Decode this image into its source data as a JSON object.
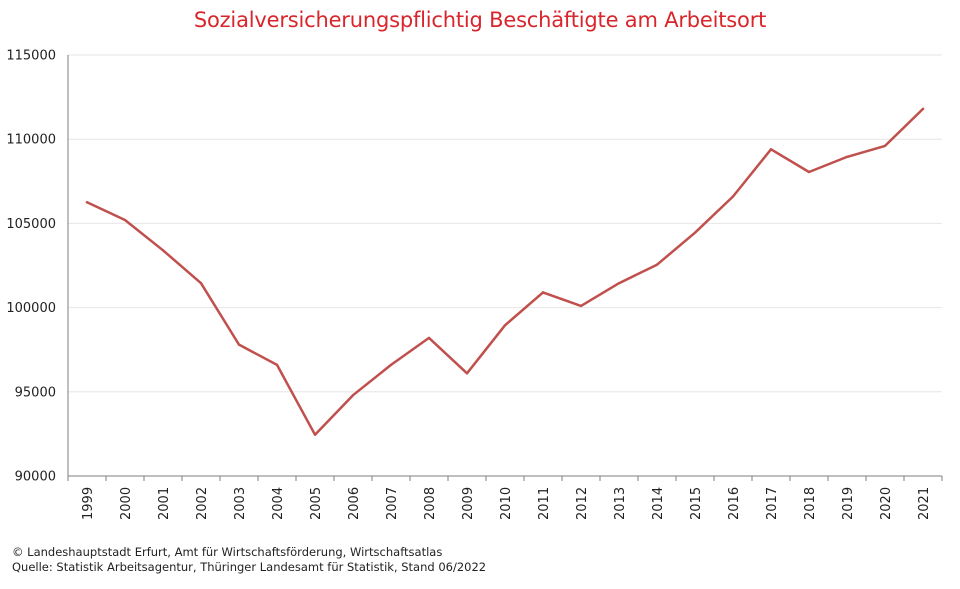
{
  "title": "Sozialversicherungspflichtig Beschäftigte am Arbeitsort",
  "footer": {
    "line1": "© Landeshauptstadt Erfurt, Amt für Wirtschaftsförderung, Wirtschaftsatlas",
    "line2": "Quelle: Statistik Arbeitsagentur, Thüringer Landesamt für Statistik, Stand 06/2022"
  },
  "colors": {
    "line": "#c0504d",
    "title": "#d9262c",
    "grid": "#e6e6e6",
    "axis": "#7f7f7f"
  },
  "chart_data": {
    "type": "line",
    "title": "Sozialversicherungspflichtig Beschäftigte am Arbeitsort",
    "xlabel": "",
    "ylabel": "",
    "ylim": [
      90000,
      115000
    ],
    "yticks": [
      90000,
      95000,
      100000,
      105000,
      110000,
      115000
    ],
    "grid": true,
    "legend": "none",
    "categories": [
      "1999",
      "2000",
      "2001",
      "2002",
      "2003",
      "2004",
      "2005",
      "2006",
      "2007",
      "2008",
      "2009",
      "2010",
      "2011",
      "2012",
      "2013",
      "2014",
      "2015",
      "2016",
      "2017",
      "2018",
      "2019",
      "2020",
      "2021"
    ],
    "series": [
      {
        "values": [
          106250,
          105200,
          103400,
          101450,
          97800,
          96600,
          92450,
          94800,
          96600,
          98200,
          96100,
          98950,
          100900,
          100100,
          101450,
          102550,
          104450,
          106600,
          109400,
          108050,
          108950,
          109600,
          111800
        ]
      }
    ]
  }
}
